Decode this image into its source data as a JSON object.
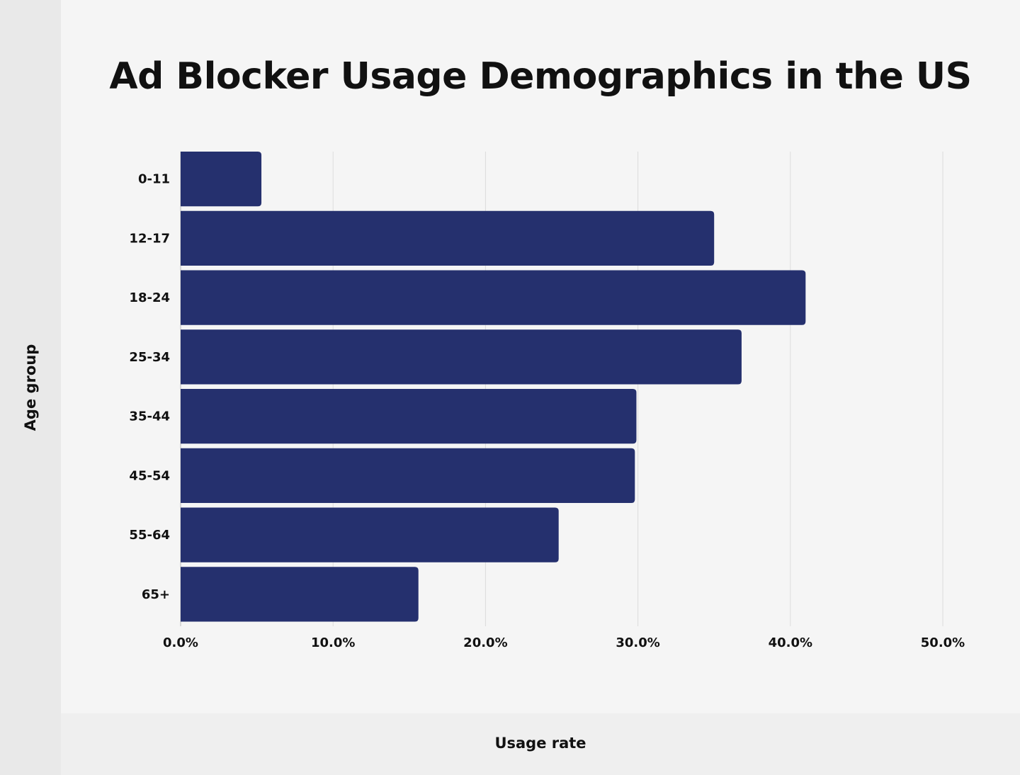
{
  "chart_data": {
    "type": "bar",
    "orientation": "horizontal",
    "title": "Ad Blocker Usage Demographics in the US",
    "xlabel": "Usage rate",
    "ylabel": "Age group",
    "categories": [
      "0-11",
      "12-17",
      "18-24",
      "25-34",
      "35-44",
      "45-54",
      "55-64",
      "65+"
    ],
    "values": [
      5.3,
      35.0,
      41.0,
      36.8,
      29.9,
      29.8,
      24.8,
      15.6
    ],
    "xlim": [
      0,
      50
    ],
    "xticks": [
      "0.0%",
      "10.0%",
      "20.0%",
      "30.0%",
      "40.0%",
      "50.0%"
    ],
    "grid": true,
    "bar_color": "#25306e"
  }
}
